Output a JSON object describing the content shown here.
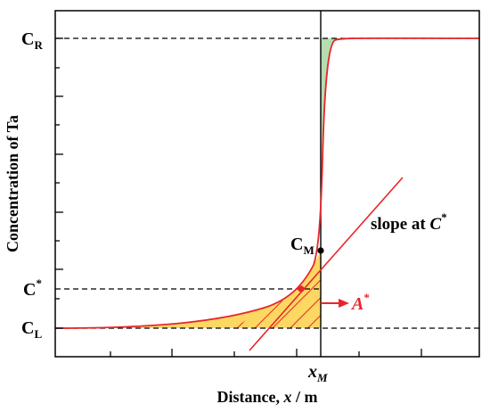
{
  "chart_data": {
    "type": "line",
    "title": "",
    "xlabel": {
      "main": "Distance, ",
      "var": "x",
      "unit": " / m"
    },
    "ylabel": "Concentration of Ta",
    "grid": false,
    "legend": "none",
    "x_tick_label": {
      "main": "x",
      "sub": "M"
    },
    "y_levels": {
      "CR": {
        "main": "C",
        "sub": "R",
        "sup": ""
      },
      "Cstar": {
        "main": "C",
        "sub": "",
        "sup": "*"
      },
      "CL": {
        "main": "C",
        "sub": "L",
        "sup": ""
      }
    },
    "point_labels": {
      "CM": {
        "main": "C",
        "sub": "M"
      }
    },
    "annotations": {
      "slope": {
        "main": "slope at ",
        "var": "C",
        "sup": "*"
      },
      "area": {
        "main": "A",
        "sup": "*"
      }
    },
    "colors": {
      "curve": "#e8262a",
      "green_fill": "#b5ddb0",
      "yellow_fill": "#fcd862",
      "hatch": "#e8262a",
      "tangent": "#e8262a",
      "axis": "#000000"
    }
  }
}
